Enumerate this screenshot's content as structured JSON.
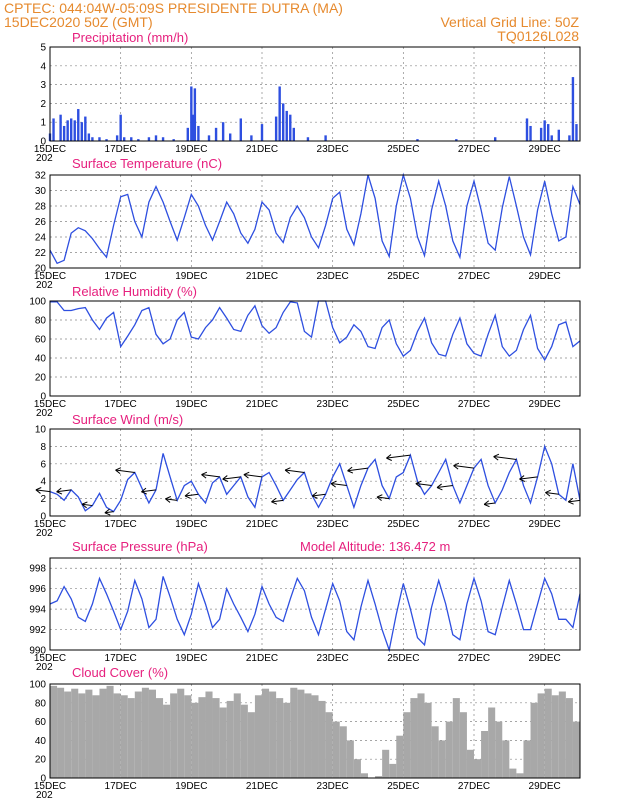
{
  "header": {
    "station": "CPTEC:   044:04W-05:09S   PRESIDENTE DUTRA (MA)",
    "date": "15DEC2020 50Z (GMT)",
    "grid_note": "Vertical Grid Line: 50Z",
    "code": "TQ0126L028"
  },
  "colors": {
    "header": "#e68a2e",
    "panel_title": "#e6207e",
    "series": "#2e4fe0",
    "cloud": "#a8a8a8"
  },
  "x_axis": {
    "start_day": 15,
    "end_day": 30,
    "ticks": [
      15,
      17,
      19,
      21,
      23,
      25,
      27,
      29
    ],
    "labels": [
      "15DEC",
      "17DEC",
      "19DEC",
      "21DEC",
      "23DEC",
      "25DEC",
      "27DEC",
      "29DEC"
    ],
    "partial_label": "202"
  },
  "extra": {
    "altitude_label": "Model Altitude: 136.472 m"
  },
  "chart_data": [
    {
      "type": "bar",
      "title": "Precipitation (mm/h)",
      "ylim": [
        0,
        5
      ],
      "yticks": [
        0,
        1,
        2,
        3,
        4,
        5
      ],
      "x": [
        15.0,
        15.1,
        15.3,
        15.4,
        15.5,
        15.6,
        15.7,
        15.8,
        15.9,
        16.0,
        16.1,
        16.2,
        16.4,
        16.6,
        16.9,
        17.0,
        17.1,
        17.3,
        17.5,
        17.8,
        18.0,
        18.2,
        18.5,
        18.9,
        19.0,
        19.05,
        19.1,
        19.2,
        19.5,
        19.7,
        19.9,
        20.1,
        20.4,
        20.7,
        21.0,
        21.4,
        21.5,
        21.6,
        21.7,
        21.8,
        21.9,
        22.3,
        22.8,
        25.4,
        26.5,
        27.6,
        28.5,
        28.6,
        28.9,
        29.0,
        29.1,
        29.2,
        29.4,
        29.7,
        29.8,
        29.9
      ],
      "y": [
        0.4,
        1.2,
        1.4,
        0.8,
        1.1,
        1.2,
        1.1,
        1.7,
        1.0,
        1.3,
        0.4,
        0.2,
        0.2,
        0.1,
        0.3,
        1.4,
        0.2,
        0.2,
        0.1,
        0.2,
        0.3,
        0.2,
        0.1,
        0.7,
        2.9,
        1.4,
        2.8,
        0.8,
        0.3,
        0.7,
        1.0,
        0.4,
        1.2,
        0.3,
        0.9,
        1.3,
        2.9,
        2.0,
        1.6,
        1.4,
        0.7,
        0.2,
        0.3,
        0.1,
        0.1,
        0.2,
        1.2,
        0.8,
        0.7,
        1.1,
        0.9,
        0.3,
        0.6,
        0.3,
        3.4,
        0.9
      ]
    },
    {
      "type": "line",
      "title": "Surface Temperature (nC)",
      "ylim": [
        20,
        32
      ],
      "yticks": [
        20,
        22,
        24,
        26,
        28,
        30,
        32
      ],
      "x": [
        15.0,
        15.2,
        15.4,
        15.6,
        15.8,
        16.0,
        16.2,
        16.4,
        16.6,
        16.8,
        17.0,
        17.2,
        17.4,
        17.6,
        17.8,
        18.0,
        18.2,
        18.4,
        18.6,
        18.8,
        19.0,
        19.2,
        19.4,
        19.6,
        19.8,
        20.0,
        20.2,
        20.4,
        20.6,
        20.8,
        21.0,
        21.2,
        21.4,
        21.6,
        21.8,
        22.0,
        22.2,
        22.4,
        22.6,
        22.8,
        23.0,
        23.2,
        23.4,
        23.6,
        23.8,
        24.0,
        24.2,
        24.4,
        24.6,
        24.8,
        25.0,
        25.2,
        25.4,
        25.6,
        25.8,
        26.0,
        26.2,
        26.4,
        26.6,
        26.8,
        27.0,
        27.2,
        27.4,
        27.6,
        27.8,
        28.0,
        28.2,
        28.4,
        28.6,
        28.8,
        29.0,
        29.2,
        29.4,
        29.6,
        29.8,
        30.0
      ],
      "y": [
        22.3,
        20.6,
        21.0,
        24.5,
        25.2,
        24.8,
        23.8,
        22.5,
        21.4,
        25.5,
        29.2,
        29.5,
        26.0,
        24.0,
        28.5,
        30.5,
        28.5,
        26.0,
        23.6,
        26.5,
        29.5,
        28.0,
        25.5,
        23.6,
        26.0,
        28.5,
        27.0,
        24.5,
        23.2,
        25.0,
        28.5,
        27.5,
        24.5,
        23.3,
        26.5,
        28.0,
        26.5,
        24.0,
        22.6,
        25.5,
        29.0,
        29.8,
        25.0,
        23.0,
        27.0,
        32.0,
        29.0,
        23.5,
        21.5,
        28.0,
        32.0,
        29.0,
        24.0,
        21.6,
        27.5,
        31.2,
        28.0,
        23.5,
        21.4,
        28.0,
        31.2,
        27.5,
        23.2,
        22.3,
        27.8,
        31.8,
        28.0,
        24.0,
        21.7,
        27.5,
        31.2,
        27.0,
        23.5,
        24.0,
        30.5,
        28.2
      ]
    },
    {
      "type": "line",
      "title": "Relative Humidity (%)",
      "ylim": [
        0,
        100
      ],
      "yticks": [
        0,
        20,
        40,
        60,
        80,
        100
      ],
      "x": [
        15.0,
        15.2,
        15.4,
        15.6,
        15.8,
        16.0,
        16.2,
        16.4,
        16.6,
        16.8,
        17.0,
        17.2,
        17.4,
        17.6,
        17.8,
        18.0,
        18.2,
        18.4,
        18.6,
        18.8,
        19.0,
        19.2,
        19.4,
        19.6,
        19.8,
        20.0,
        20.2,
        20.4,
        20.6,
        20.8,
        21.0,
        21.2,
        21.4,
        21.6,
        21.8,
        22.0,
        22.2,
        22.4,
        22.6,
        22.8,
        23.0,
        23.2,
        23.4,
        23.6,
        23.8,
        24.0,
        24.2,
        24.4,
        24.6,
        24.8,
        25.0,
        25.2,
        25.4,
        25.6,
        25.8,
        26.0,
        26.2,
        26.4,
        26.6,
        26.8,
        27.0,
        27.2,
        27.4,
        27.6,
        27.8,
        28.0,
        28.2,
        28.4,
        28.6,
        28.8,
        29.0,
        29.2,
        29.4,
        29.6,
        29.8,
        30.0
      ],
      "y": [
        99,
        99,
        90,
        90,
        92,
        93,
        80,
        70,
        82,
        88,
        52,
        63,
        75,
        90,
        93,
        65,
        55,
        60,
        80,
        88,
        62,
        60,
        72,
        80,
        93,
        82,
        70,
        68,
        85,
        95,
        74,
        66,
        72,
        88,
        99,
        98,
        68,
        62,
        100,
        100,
        72,
        56,
        62,
        75,
        68,
        52,
        50,
        72,
        80,
        55,
        42,
        48,
        68,
        82,
        56,
        44,
        42,
        65,
        82,
        55,
        45,
        42,
        65,
        85,
        52,
        42,
        48,
        70,
        85,
        50,
        38,
        52,
        75,
        78,
        52,
        58
      ]
    },
    {
      "type": "line",
      "title": "Surface Wind (m/s)",
      "ylim": [
        0,
        10
      ],
      "yticks": [
        0,
        2,
        4,
        6,
        8,
        10
      ],
      "x": [
        15.0,
        15.2,
        15.4,
        15.6,
        15.8,
        16.0,
        16.2,
        16.4,
        16.6,
        16.8,
        17.0,
        17.2,
        17.4,
        17.6,
        17.8,
        18.0,
        18.2,
        18.4,
        18.6,
        18.8,
        19.0,
        19.2,
        19.4,
        19.6,
        19.8,
        20.0,
        20.2,
        20.4,
        20.6,
        20.8,
        21.0,
        21.2,
        21.4,
        21.6,
        21.8,
        22.0,
        22.2,
        22.4,
        22.6,
        22.8,
        23.0,
        23.2,
        23.4,
        23.6,
        23.8,
        24.0,
        24.2,
        24.4,
        24.6,
        24.8,
        25.0,
        25.2,
        25.4,
        25.6,
        25.8,
        26.0,
        26.2,
        26.4,
        26.6,
        26.8,
        27.0,
        27.2,
        27.4,
        27.6,
        27.8,
        28.0,
        28.2,
        28.4,
        28.6,
        28.8,
        29.0,
        29.2,
        29.4,
        29.6,
        29.8,
        30.0
      ],
      "y": [
        2.8,
        2.5,
        1.8,
        3.0,
        2.2,
        0.6,
        1.2,
        2.6,
        1.0,
        0.5,
        1.8,
        4.2,
        5.0,
        3.2,
        1.5,
        3.0,
        7.2,
        4.5,
        1.8,
        3.5,
        4.0,
        2.5,
        1.5,
        3.8,
        4.5,
        2.5,
        3.5,
        4.5,
        2.2,
        1.0,
        4.5,
        5.0,
        3.5,
        1.8,
        3.0,
        4.2,
        5.0,
        2.5,
        1.0,
        2.5,
        4.5,
        6.0,
        3.5,
        1.0,
        3.5,
        5.5,
        6.5,
        3.5,
        2.0,
        4.5,
        5.0,
        7.0,
        4.0,
        2.5,
        3.5,
        5.0,
        6.5,
        3.5,
        1.5,
        3.5,
        5.5,
        6.5,
        3.5,
        1.5,
        3.0,
        5.0,
        6.5,
        3.5,
        1.5,
        4.5,
        8.0,
        6.0,
        2.5,
        1.8,
        6.0,
        1.8
      ]
    },
    {
      "type": "line",
      "title": "Surface Pressure (hPa)",
      "ylim": [
        990,
        999
      ],
      "yticks": [
        990,
        992,
        994,
        996,
        998
      ],
      "x": [
        15.0,
        15.2,
        15.4,
        15.6,
        15.8,
        16.0,
        16.2,
        16.4,
        16.6,
        16.8,
        17.0,
        17.2,
        17.4,
        17.6,
        17.8,
        18.0,
        18.2,
        18.4,
        18.6,
        18.8,
        19.0,
        19.2,
        19.4,
        19.6,
        19.8,
        20.0,
        20.2,
        20.4,
        20.6,
        20.8,
        21.0,
        21.2,
        21.4,
        21.6,
        21.8,
        22.0,
        22.2,
        22.4,
        22.6,
        22.8,
        23.0,
        23.2,
        23.4,
        23.6,
        23.8,
        24.0,
        24.2,
        24.4,
        24.6,
        24.8,
        25.0,
        25.2,
        25.4,
        25.6,
        25.8,
        26.0,
        26.2,
        26.4,
        26.6,
        26.8,
        27.0,
        27.2,
        27.4,
        27.6,
        27.8,
        28.0,
        28.2,
        28.4,
        28.6,
        28.8,
        29.0,
        29.2,
        29.4,
        29.6,
        29.8,
        30.0
      ],
      "y": [
        994.5,
        994.8,
        996.2,
        995.0,
        993.2,
        992.8,
        994.5,
        997.0,
        995.5,
        993.8,
        992.0,
        993.8,
        996.8,
        995.0,
        992.2,
        993.0,
        997.2,
        995.2,
        993.0,
        991.5,
        993.5,
        996.5,
        994.5,
        992.2,
        993.0,
        996.0,
        994.5,
        993.2,
        991.8,
        993.5,
        996.2,
        994.5,
        993.2,
        992.8,
        995.0,
        997.0,
        995.8,
        993.2,
        991.5,
        994.0,
        996.5,
        994.8,
        991.8,
        991.0,
        994.2,
        996.8,
        994.5,
        992.0,
        990.0,
        993.5,
        996.5,
        994.0,
        991.2,
        990.5,
        994.2,
        996.8,
        994.5,
        991.5,
        991.0,
        994.5,
        997.0,
        994.8,
        991.8,
        991.5,
        994.2,
        996.8,
        994.5,
        992.0,
        992.0,
        994.5,
        997.0,
        995.5,
        993.0,
        993.0,
        992.2,
        995.5
      ]
    },
    {
      "type": "bar",
      "title": "Cloud Cover (%)",
      "ylim": [
        0,
        100
      ],
      "yticks": [
        0,
        20,
        40,
        60,
        80,
        100
      ],
      "x": [
        15.0,
        15.2,
        15.4,
        15.6,
        15.8,
        16.0,
        16.2,
        16.4,
        16.6,
        16.8,
        17.0,
        17.2,
        17.4,
        17.6,
        17.8,
        18.0,
        18.2,
        18.4,
        18.6,
        18.8,
        19.0,
        19.2,
        19.4,
        19.6,
        19.8,
        20.0,
        20.2,
        20.4,
        20.6,
        20.8,
        21.0,
        21.2,
        21.4,
        21.6,
        21.8,
        22.0,
        22.2,
        22.4,
        22.6,
        22.8,
        23.0,
        23.2,
        23.4,
        23.6,
        23.8,
        24.0,
        24.2,
        24.4,
        24.6,
        24.8,
        25.0,
        25.2,
        25.4,
        25.6,
        25.8,
        26.0,
        26.2,
        26.4,
        26.6,
        26.8,
        27.0,
        27.2,
        27.4,
        27.6,
        27.8,
        28.0,
        28.2,
        28.4,
        28.6,
        28.8,
        29.0,
        29.2,
        29.4,
        29.6,
        29.8
      ],
      "y": [
        98,
        96,
        92,
        95,
        90,
        94,
        88,
        95,
        98,
        90,
        88,
        85,
        92,
        96,
        94,
        85,
        78,
        90,
        95,
        88,
        80,
        86,
        92,
        85,
        75,
        82,
        90,
        78,
        70,
        88,
        95,
        92,
        85,
        80,
        96,
        94,
        90,
        88,
        82,
        70,
        60,
        55,
        40,
        20,
        5,
        0,
        2,
        30,
        15,
        45,
        70,
        85,
        90,
        80,
        55,
        40,
        60,
        85,
        70,
        30,
        20,
        50,
        75,
        60,
        40,
        10,
        5,
        40,
        80,
        90,
        95,
        88,
        92,
        85,
        60
      ]
    }
  ]
}
